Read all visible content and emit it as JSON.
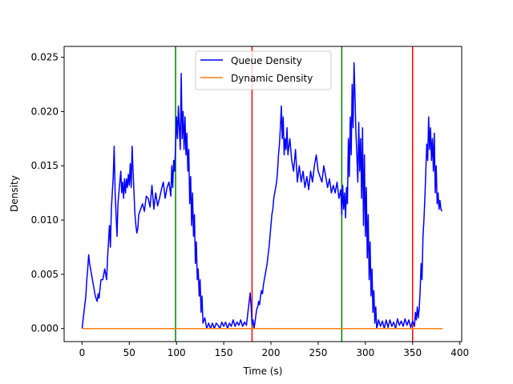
{
  "chart_data": {
    "type": "line",
    "title": "",
    "xlabel": "Time (s)",
    "ylabel": "Density",
    "xlim": [
      -19,
      402
    ],
    "ylim": [
      -0.0012,
      0.026
    ],
    "x_ticks": [
      0,
      50,
      100,
      150,
      200,
      250,
      300,
      350,
      400
    ],
    "y_ticks": [
      0.0,
      0.005,
      0.01,
      0.015,
      0.02,
      0.025
    ],
    "y_tick_labels": [
      "0.000",
      "0.005",
      "0.010",
      "0.015",
      "0.020",
      "0.025"
    ],
    "grid": false,
    "legend_position": "top-center",
    "series": [
      {
        "name": "Queue Density",
        "color": "#0000ff",
        "points": [
          [
            0,
            0.0
          ],
          [
            2,
            0.0015
          ],
          [
            4,
            0.003
          ],
          [
            5,
            0.0045
          ],
          [
            6,
            0.0055
          ],
          [
            7,
            0.0068
          ],
          [
            8,
            0.006
          ],
          [
            10,
            0.005
          ],
          [
            11,
            0.0045
          ],
          [
            13,
            0.0035
          ],
          [
            14,
            0.003
          ],
          [
            16,
            0.0025
          ],
          [
            17,
            0.0032
          ],
          [
            18,
            0.0028
          ],
          [
            20,
            0.0045
          ],
          [
            22,
            0.0045
          ],
          [
            24,
            0.0055
          ],
          [
            26,
            0.0045
          ],
          [
            27,
            0.0065
          ],
          [
            28,
            0.008
          ],
          [
            29,
            0.0095
          ],
          [
            30,
            0.0075
          ],
          [
            31,
            0.011
          ],
          [
            32,
            0.0125
          ],
          [
            33,
            0.014
          ],
          [
            34,
            0.0168
          ],
          [
            35,
            0.0125
          ],
          [
            36,
            0.0105
          ],
          [
            37,
            0.0085
          ],
          [
            38,
            0.0115
          ],
          [
            39,
            0.0125
          ],
          [
            40,
            0.0135
          ],
          [
            41,
            0.0145
          ],
          [
            42,
            0.0125
          ],
          [
            43,
            0.0135
          ],
          [
            44,
            0.012
          ],
          [
            45,
            0.0138
          ],
          [
            46,
            0.0125
          ],
          [
            47,
            0.0138
          ],
          [
            48,
            0.013
          ],
          [
            49,
            0.0142
          ],
          [
            50,
            0.0132
          ],
          [
            51,
            0.0152
          ],
          [
            52,
            0.013
          ],
          [
            53,
            0.0168
          ],
          [
            54,
            0.0145
          ],
          [
            55,
            0.0125
          ],
          [
            56,
            0.0105
          ],
          [
            57,
            0.0095
          ],
          [
            58,
            0.0088
          ],
          [
            59,
            0.0092
          ],
          [
            60,
            0.0105
          ],
          [
            62,
            0.011
          ],
          [
            64,
            0.0115
          ],
          [
            66,
            0.0108
          ],
          [
            68,
            0.0122
          ],
          [
            70,
            0.012
          ],
          [
            72,
            0.0112
          ],
          [
            74,
            0.0132
          ],
          [
            76,
            0.011
          ],
          [
            78,
            0.0125
          ],
          [
            80,
            0.0113
          ],
          [
            82,
            0.012
          ],
          [
            84,
            0.0128
          ],
          [
            86,
            0.0135
          ],
          [
            88,
            0.012
          ],
          [
            90,
            0.013
          ],
          [
            92,
            0.0135
          ],
          [
            94,
            0.0122
          ],
          [
            95,
            0.015
          ],
          [
            96,
            0.013
          ],
          [
            97,
            0.0155
          ],
          [
            98,
            0.0145
          ],
          [
            99,
            0.0168
          ],
          [
            100,
            0.0195
          ],
          [
            101,
            0.0175
          ],
          [
            102,
            0.0205
          ],
          [
            103,
            0.0185
          ],
          [
            104,
            0.0165
          ],
          [
            105,
            0.0235
          ],
          [
            106,
            0.0175
          ],
          [
            107,
            0.02
          ],
          [
            108,
            0.0165
          ],
          [
            109,
            0.0195
          ],
          [
            110,
            0.016
          ],
          [
            111,
            0.018
          ],
          [
            112,
            0.0145
          ],
          [
            113,
            0.0165
          ],
          [
            114,
            0.0115
          ],
          [
            115,
            0.014
          ],
          [
            116,
            0.0095
          ],
          [
            117,
            0.0125
          ],
          [
            118,
            0.0085
          ],
          [
            119,
            0.0105
          ],
          [
            120,
            0.006
          ],
          [
            121,
            0.008
          ],
          [
            122,
            0.0045
          ],
          [
            123,
            0.0055
          ],
          [
            124,
            0.003
          ],
          [
            125,
            0.0045
          ],
          [
            126,
            0.0015
          ],
          [
            127,
            0.003
          ],
          [
            128,
            0.0005
          ],
          [
            130,
            0.001
          ],
          [
            132,
            0.0
          ],
          [
            134,
            0.0005
          ],
          [
            136,
            0.0
          ],
          [
            138,
            0.0005
          ],
          [
            140,
            0.0
          ],
          [
            142,
            0.0005
          ],
          [
            144,
            0.0003
          ],
          [
            146,
            0.0
          ],
          [
            148,
            0.0006
          ],
          [
            150,
            0.0002
          ],
          [
            152,
            0.0006
          ],
          [
            154,
            0.0
          ],
          [
            156,
            0.0005
          ],
          [
            158,
            0.0002
          ],
          [
            160,
            0.0008
          ],
          [
            162,
            0.0002
          ],
          [
            164,
            0.0006
          ],
          [
            166,
            0.0003
          ],
          [
            168,
            0.0008
          ],
          [
            170,
            0.0002
          ],
          [
            172,
            0.0006
          ],
          [
            174,
            0.0003
          ],
          [
            175,
            0.001
          ],
          [
            176,
            0.0018
          ],
          [
            177,
            0.0025
          ],
          [
            178,
            0.0033
          ],
          [
            179,
            0.002
          ],
          [
            180,
            0.0004
          ],
          [
            181,
            0.0008
          ],
          [
            182,
            0.0
          ],
          [
            183,
            0.0005
          ],
          [
            184,
            0.0012
          ],
          [
            185,
            0.0018
          ],
          [
            186,
            0.002
          ],
          [
            187,
            0.0025
          ],
          [
            188,
            0.0022
          ],
          [
            189,
            0.003
          ],
          [
            190,
            0.0035
          ],
          [
            191,
            0.0032
          ],
          [
            192,
            0.004
          ],
          [
            193,
            0.0045
          ],
          [
            194,
            0.005
          ],
          [
            195,
            0.0055
          ],
          [
            196,
            0.006
          ],
          [
            197,
            0.0068
          ],
          [
            198,
            0.0075
          ],
          [
            199,
            0.0085
          ],
          [
            200,
            0.0095
          ],
          [
            201,
            0.0105
          ],
          [
            202,
            0.011
          ],
          [
            203,
            0.012
          ],
          [
            204,
            0.0125
          ],
          [
            205,
            0.013
          ],
          [
            206,
            0.0135
          ],
          [
            207,
            0.0145
          ],
          [
            208,
            0.016
          ],
          [
            209,
            0.017
          ],
          [
            210,
            0.0185
          ],
          [
            211,
            0.0205
          ],
          [
            212,
            0.0175
          ],
          [
            213,
            0.0195
          ],
          [
            214,
            0.016
          ],
          [
            215,
            0.0175
          ],
          [
            216,
            0.0165
          ],
          [
            217,
            0.0185
          ],
          [
            218,
            0.016
          ],
          [
            220,
            0.0175
          ],
          [
            222,
            0.0155
          ],
          [
            224,
            0.0145
          ],
          [
            226,
            0.0165
          ],
          [
            228,
            0.0135
          ],
          [
            230,
            0.015
          ],
          [
            232,
            0.0135
          ],
          [
            234,
            0.0145
          ],
          [
            236,
            0.013
          ],
          [
            238,
            0.014
          ],
          [
            240,
            0.0128
          ],
          [
            242,
            0.0145
          ],
          [
            244,
            0.0135
          ],
          [
            246,
            0.015
          ],
          [
            248,
            0.016
          ],
          [
            250,
            0.0145
          ],
          [
            252,
            0.014
          ],
          [
            254,
            0.0135
          ],
          [
            256,
            0.015
          ],
          [
            258,
            0.014
          ],
          [
            260,
            0.013
          ],
          [
            262,
            0.0138
          ],
          [
            264,
            0.0125
          ],
          [
            266,
            0.0132
          ],
          [
            268,
            0.0125
          ],
          [
            270,
            0.0135
          ],
          [
            272,
            0.012
          ],
          [
            274,
            0.0128
          ],
          [
            275,
            0.0105
          ],
          [
            276,
            0.0132
          ],
          [
            277,
            0.011
          ],
          [
            278,
            0.0125
          ],
          [
            279,
            0.0102
          ],
          [
            280,
            0.013
          ],
          [
            281,
            0.0115
          ],
          [
            282,
            0.0175
          ],
          [
            283,
            0.014
          ],
          [
            284,
            0.0195
          ],
          [
            285,
            0.016
          ],
          [
            286,
            0.0225
          ],
          [
            287,
            0.0185
          ],
          [
            288,
            0.0245
          ],
          [
            289,
            0.0215
          ],
          [
            290,
            0.018
          ],
          [
            291,
            0.016
          ],
          [
            292,
            0.0135
          ],
          [
            293,
            0.019
          ],
          [
            294,
            0.0145
          ],
          [
            295,
            0.0175
          ],
          [
            296,
            0.012
          ],
          [
            297,
            0.0185
          ],
          [
            298,
            0.0095
          ],
          [
            299,
            0.016
          ],
          [
            300,
            0.0085
          ],
          [
            301,
            0.013
          ],
          [
            302,
            0.0065
          ],
          [
            303,
            0.0105
          ],
          [
            304,
            0.0045
          ],
          [
            305,
            0.008
          ],
          [
            306,
            0.003
          ],
          [
            307,
            0.0055
          ],
          [
            308,
            0.0015
          ],
          [
            309,
            0.0035
          ],
          [
            310,
            0.0005
          ],
          [
            311,
            0.002
          ],
          [
            312,
            0.0
          ],
          [
            314,
            0.0008
          ],
          [
            316,
            0.0002
          ],
          [
            318,
            0.0007
          ],
          [
            320,
            0.0
          ],
          [
            322,
            0.0008
          ],
          [
            324,
            0.0001
          ],
          [
            326,
            0.0008
          ],
          [
            328,
            0.0002
          ],
          [
            330,
            0.0006
          ],
          [
            332,
            0.0
          ],
          [
            334,
            0.0009
          ],
          [
            336,
            0.0003
          ],
          [
            338,
            0.0007
          ],
          [
            340,
            0.0002
          ],
          [
            342,
            0.0009
          ],
          [
            344,
            0.0003
          ],
          [
            346,
            0.0008
          ],
          [
            348,
            0.0001
          ],
          [
            350,
            0.0007
          ],
          [
            351,
            0.0005
          ],
          [
            352,
            0.0002
          ],
          [
            353,
            0.0015
          ],
          [
            354,
            0.0008
          ],
          [
            355,
            0.002
          ],
          [
            356,
            0.001
          ],
          [
            357,
            0.0018
          ],
          [
            358,
            0.0035
          ],
          [
            359,
            0.006
          ],
          [
            360,
            0.0045
          ],
          [
            361,
            0.0085
          ],
          [
            362,
            0.01
          ],
          [
            363,
            0.012
          ],
          [
            364,
            0.0145
          ],
          [
            365,
            0.017
          ],
          [
            366,
            0.0155
          ],
          [
            367,
            0.0195
          ],
          [
            368,
            0.0165
          ],
          [
            369,
            0.0185
          ],
          [
            370,
            0.0155
          ],
          [
            371,
            0.0175
          ],
          [
            372,
            0.0145
          ],
          [
            373,
            0.018
          ],
          [
            374,
            0.0125
          ],
          [
            375,
            0.015
          ],
          [
            376,
            0.0115
          ],
          [
            377,
            0.0125
          ],
          [
            378,
            0.011
          ],
          [
            379,
            0.0118
          ],
          [
            380,
            0.011
          ],
          [
            381,
            0.0108
          ]
        ]
      },
      {
        "name": "Dynamic Density",
        "color": "#ff7f0e",
        "points": [
          [
            0,
            0.0
          ],
          [
            382,
            0.0
          ]
        ]
      }
    ],
    "vlines": [
      {
        "x": 99,
        "color": "#008000"
      },
      {
        "x": 180,
        "color": "#ff0000"
      },
      {
        "x": 275,
        "color": "#008000"
      },
      {
        "x": 350,
        "color": "#ff0000"
      }
    ]
  }
}
